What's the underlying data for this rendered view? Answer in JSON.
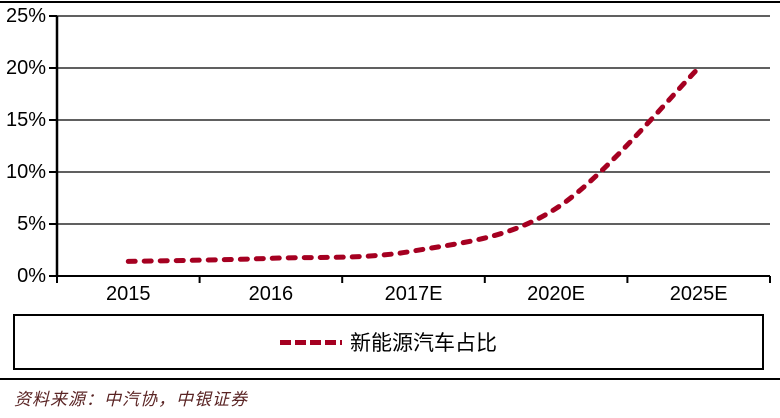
{
  "chart_data": {
    "type": "line",
    "title": "",
    "xlabel": "",
    "ylabel": "",
    "categories": [
      "2015",
      "2016",
      "2017E",
      "2020E",
      "2025E"
    ],
    "series": [
      {
        "name": "新能源汽车占比",
        "values": [
          1.4,
          1.7,
          2.4,
          6.5,
          20.0
        ],
        "color": "#A50021",
        "line_style": "dashed",
        "smooth": true
      }
    ],
    "ylim": [
      0,
      25
    ],
    "ytick_values": [
      0,
      5,
      10,
      15,
      20,
      25
    ],
    "ytick_labels": [
      "0%",
      "5%",
      "10%",
      "15%",
      "20%",
      "25%"
    ],
    "grid": true,
    "axis_color": "#000000",
    "legend_position": "bottom-box"
  },
  "legend": {
    "label": "新能源汽车占比",
    "swatch_color": "#A50021"
  },
  "footer": {
    "source_label": "资料来源：中汽协，中银证券"
  }
}
